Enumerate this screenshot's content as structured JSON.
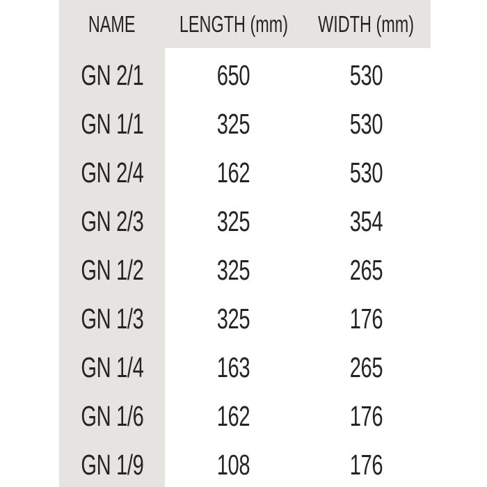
{
  "page": {
    "background": "#ffffff"
  },
  "colors": {
    "panel_gray": "#e6e4e1",
    "text": "#262324"
  },
  "table": {
    "headers": [
      {
        "label": "NAME"
      },
      {
        "label": "LENGTH (mm)"
      },
      {
        "label": "WIDTH (mm)"
      }
    ],
    "rows": [
      {
        "name": "GN 2/1",
        "length": "650",
        "width": "530"
      },
      {
        "name": "GN 1/1",
        "length": "325",
        "width": "530"
      },
      {
        "name": "GN 2/4",
        "length": "162",
        "width": "530"
      },
      {
        "name": "GN 2/3",
        "length": "325",
        "width": "354"
      },
      {
        "name": "GN 1/2",
        "length": "325",
        "width": "265"
      },
      {
        "name": "GN 1/3",
        "length": "325",
        "width": "176"
      },
      {
        "name": "GN 1/4",
        "length": "163",
        "width": "265"
      },
      {
        "name": "GN 1/6",
        "length": "162",
        "width": "176"
      },
      {
        "name": "GN 1/9",
        "length": "108",
        "width": "176"
      }
    ]
  },
  "chart_data": {
    "type": "table",
    "columns": [
      "NAME",
      "LENGTH (mm)",
      "WIDTH (mm)"
    ],
    "rows": [
      [
        "GN 2/1",
        650,
        530
      ],
      [
        "GN 1/1",
        325,
        530
      ],
      [
        "GN 2/4",
        162,
        530
      ],
      [
        "GN 2/3",
        325,
        354
      ],
      [
        "GN 1/2",
        325,
        265
      ],
      [
        "GN 1/3",
        325,
        176
      ],
      [
        "GN 1/4",
        163,
        265
      ],
      [
        "GN 1/6",
        162,
        176
      ],
      [
        "GN 1/9",
        108,
        176
      ]
    ]
  }
}
